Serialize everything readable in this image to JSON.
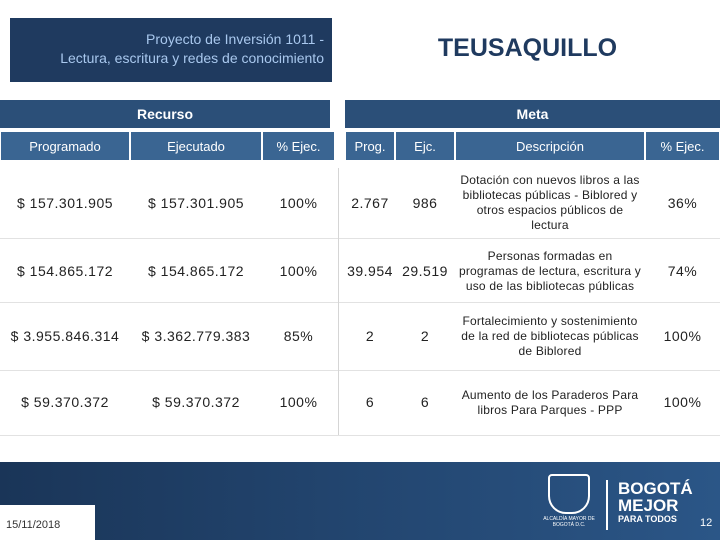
{
  "header": {
    "project_lines": [
      "Proyecto de Inversión 1011 -",
      "Lectura, escritura y redes de conocimiento"
    ],
    "location": "TEUSAQUILLO"
  },
  "table": {
    "sections": [
      "Recurso",
      "Meta"
    ],
    "columns": [
      "Programado",
      "Ejecutado",
      "% Ejec.",
      "Prog.",
      "Ejc.",
      "Descripción",
      "% Ejec."
    ],
    "rows": [
      [
        "$ 157.301.905",
        "$ 157.301.905",
        "100%",
        "2.767",
        "986",
        "Dotación con nuevos libros a las bibliotecas públicas - Biblored y otros espacios públicos de lectura",
        "36%"
      ],
      [
        "$ 154.865.172",
        "$ 154.865.172",
        "100%",
        "39.954",
        "29.519",
        "Personas formadas en programas de lectura, escritura y uso de las bibliotecas públicas",
        "74%"
      ],
      [
        "$ 3.955.846.314",
        "$ 3.362.779.383",
        "85%",
        "2",
        "2",
        "Fortalecimiento y sostenimiento de la red de bibliotecas públicas de Biblored",
        "100%"
      ],
      [
        "$ 59.370.372",
        "$ 59.370.372",
        "100%",
        "6",
        "6",
        "Aumento de los Paraderos Para libros Para Parques - PPP",
        "100%"
      ]
    ]
  },
  "footer": {
    "date": "15/11/2018",
    "page": "12",
    "seal_text": "ALCALDÍA MAYOR DE BOGOTÁ D.C.",
    "brand_lines": [
      "BOGOTÁ",
      "MEJOR",
      "PARA TODOS"
    ]
  }
}
